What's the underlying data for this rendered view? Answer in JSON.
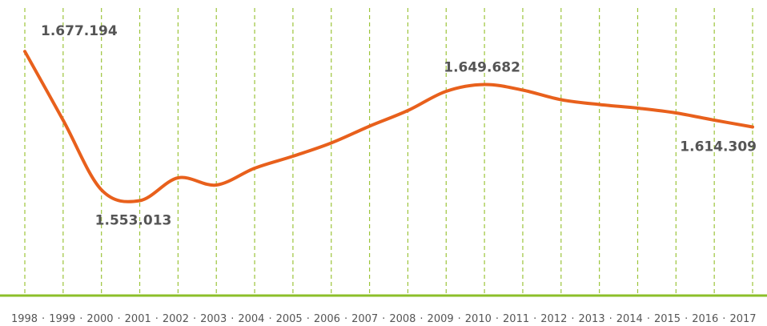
{
  "chart_data": {
    "type": "line",
    "x": [
      "1998",
      "1999",
      "2000",
      "2001",
      "2002",
      "2003",
      "2004",
      "2005",
      "2006",
      "2007",
      "2008",
      "2009",
      "2010",
      "2011",
      "2012",
      "2013",
      "2014",
      "2015",
      "2016",
      "2017"
    ],
    "values": [
      1677194,
      1620000,
      1562000,
      1553013,
      1572000,
      1566000,
      1580000,
      1590000,
      1601000,
      1615000,
      1628000,
      1644000,
      1649682,
      1645000,
      1637000,
      1633000,
      1630000,
      1626000,
      1620000,
      1614309
    ],
    "annotations": [
      {
        "index": 0,
        "text": "1.677.194"
      },
      {
        "index": 3,
        "text": "1.553.013"
      },
      {
        "index": 12,
        "text": "1.649.682"
      },
      {
        "index": 19,
        "text": "1.614.309"
      }
    ],
    "tick_separator": "·",
    "ylim": [
      1500000,
      1700000
    ],
    "grid": true,
    "colors": {
      "line": "#e8601c",
      "grid": "#9cc43a",
      "baseline": "#8cbf2a",
      "text": "#555555"
    }
  }
}
